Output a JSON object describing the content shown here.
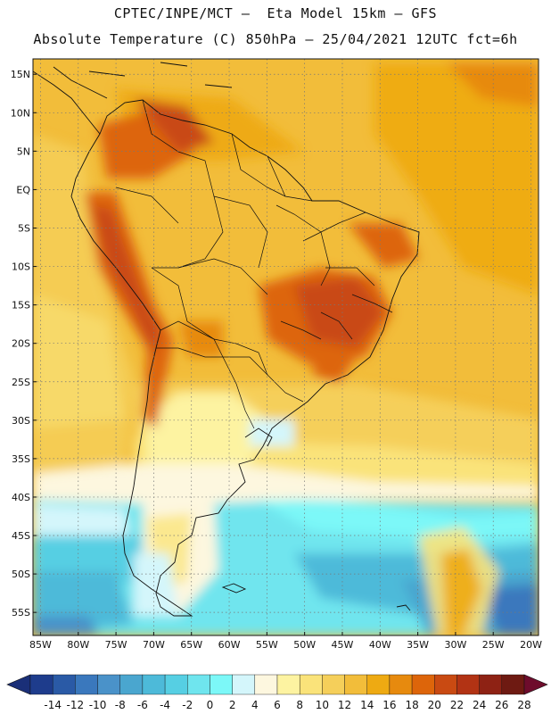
{
  "header": {
    "line1": "CPTEC/INPE/MCT –  Eta Model 15km – GFS",
    "line2": "Absolute Temperature (C) 850hPa – 25/04/2021 12UTC fct=6h"
  },
  "map": {
    "lat_labels": [
      "15N",
      "10N",
      "5N",
      "EQ",
      "5S",
      "10S",
      "15S",
      "20S",
      "25S",
      "30S",
      "35S",
      "40S",
      "45S",
      "50S",
      "55S"
    ],
    "lat_values": [
      15,
      10,
      5,
      0,
      -5,
      -10,
      -15,
      -20,
      -25,
      -30,
      -35,
      -40,
      -45,
      -50,
      -55
    ],
    "lon_labels": [
      "85W",
      "80W",
      "75W",
      "70W",
      "65W",
      "60W",
      "55W",
      "50W",
      "45W",
      "40W",
      "35W",
      "30W",
      "25W",
      "20W"
    ],
    "lon_values": [
      -85,
      -80,
      -75,
      -70,
      -65,
      -60,
      -55,
      -50,
      -45,
      -40,
      -35,
      -30,
      -25,
      -20
    ],
    "lat_range": [
      -58,
      17
    ],
    "lon_range": [
      -86,
      -19
    ]
  },
  "colorbar": {
    "ticks": [
      "-14",
      "-12",
      "-10",
      "-8",
      "-6",
      "-4",
      "-2",
      "0",
      "2",
      "4",
      "6",
      "8",
      "10",
      "12",
      "14",
      "16",
      "18",
      "20",
      "22",
      "24",
      "26",
      "28"
    ],
    "colors": [
      "#1e3c8c",
      "#2a5aa6",
      "#3a78bd",
      "#4a92c9",
      "#4aa6cf",
      "#4dbad9",
      "#56cfe3",
      "#6fe5ee",
      "#7cf8f8",
      "#d4f6fb",
      "#fdf7df",
      "#fdf3a1",
      "#fae37a",
      "#f5cf5a",
      "#f2bd3a",
      "#eeaa12",
      "#e78a0e",
      "#dd650a",
      "#c94a12",
      "#b23314",
      "#8e2214",
      "#6e1a12"
    ],
    "left_arrow": "#1a2f78",
    "right_arrow": "#6e0c2c"
  }
}
